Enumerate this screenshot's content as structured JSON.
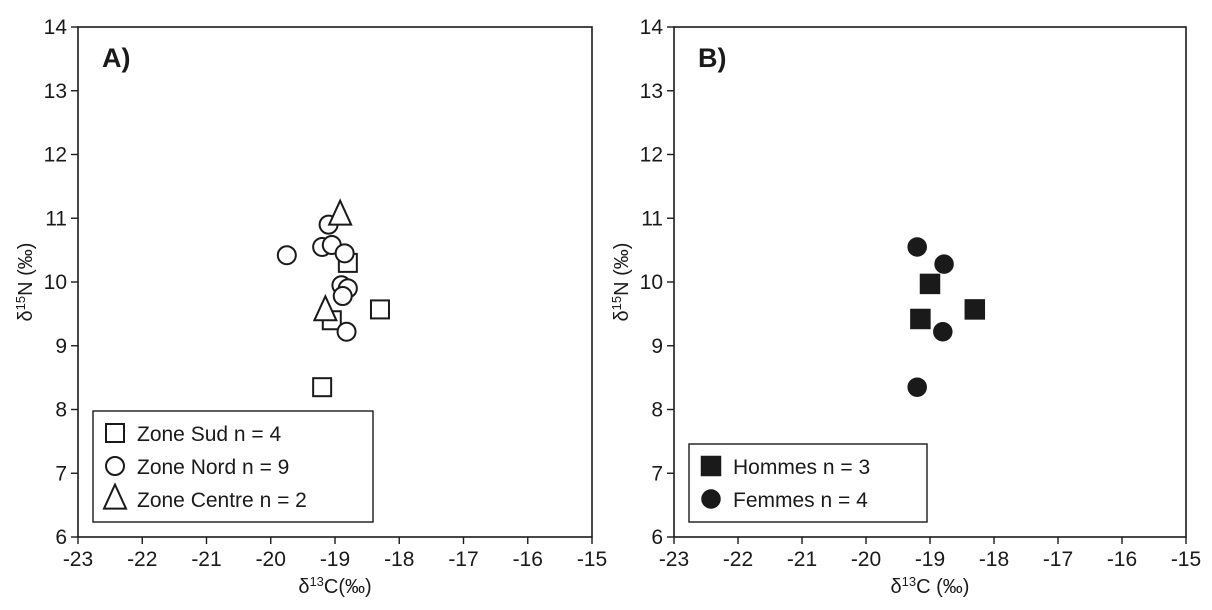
{
  "chart_data": [
    {
      "type": "scatter",
      "panel_label": "A)",
      "xlabel": {
        "delta": "δ",
        "sup": "13",
        "rest": "C(‰)"
      },
      "ylabel": {
        "delta": "δ",
        "sup": "15",
        "rest": "N (‰)"
      },
      "xlim": [
        -23,
        -15
      ],
      "ylim": [
        6,
        14
      ],
      "xticks": [
        "-23",
        "-22",
        "-21",
        "-20",
        "-19",
        "-18",
        "-17",
        "-16",
        "-15"
      ],
      "yticks": [
        "6",
        "7",
        "8",
        "9",
        "10",
        "11",
        "12",
        "13",
        "14"
      ],
      "grid": false,
      "legend_position": "bottom-left",
      "series": [
        {
          "name": "Zone Sud n = 4",
          "marker": "square",
          "filled": false,
          "points": [
            {
              "x": -19.2,
              "y": 8.35
            },
            {
              "x": -19.05,
              "y": 9.4
            },
            {
              "x": -18.8,
              "y": 10.3
            },
            {
              "x": -18.3,
              "y": 9.57
            }
          ]
        },
        {
          "name": "Zone Nord n = 9",
          "marker": "circle",
          "filled": false,
          "points": [
            {
              "x": -19.75,
              "y": 10.42
            },
            {
              "x": -19.2,
              "y": 10.55
            },
            {
              "x": -19.1,
              "y": 10.9
            },
            {
              "x": -19.05,
              "y": 10.58
            },
            {
              "x": -18.85,
              "y": 10.45
            },
            {
              "x": -18.9,
              "y": 9.95
            },
            {
              "x": -18.8,
              "y": 9.9
            },
            {
              "x": -18.88,
              "y": 9.78
            },
            {
              "x": -18.82,
              "y": 9.22
            }
          ]
        },
        {
          "name": "Zone Centre n = 2",
          "marker": "triangle",
          "filled": false,
          "points": [
            {
              "x": -18.92,
              "y": 11.05
            },
            {
              "x": -19.15,
              "y": 9.55
            }
          ]
        }
      ]
    },
    {
      "type": "scatter",
      "panel_label": "B)",
      "xlabel": {
        "delta": "δ",
        "sup": "13",
        "rest": "C (‰)"
      },
      "ylabel": {
        "delta": "δ",
        "sup": "15",
        "rest": "N (‰)"
      },
      "xlim": [
        -23,
        -15
      ],
      "ylim": [
        6,
        14
      ],
      "xticks": [
        "-23",
        "-22",
        "-21",
        "-20",
        "-19",
        "-18",
        "-17",
        "-16",
        "-15"
      ],
      "yticks": [
        "6",
        "7",
        "8",
        "9",
        "10",
        "11",
        "12",
        "13",
        "14"
      ],
      "grid": false,
      "legend_position": "bottom-left",
      "series": [
        {
          "name": "Hommes n = 3",
          "marker": "square",
          "filled": true,
          "points": [
            {
              "x": -19.0,
              "y": 9.97
            },
            {
              "x": -19.15,
              "y": 9.42
            },
            {
              "x": -18.3,
              "y": 9.57
            }
          ]
        },
        {
          "name": "Femmes n = 4",
          "marker": "circle",
          "filled": true,
          "points": [
            {
              "x": -19.2,
              "y": 10.55
            },
            {
              "x": -18.78,
              "y": 10.28
            },
            {
              "x": -18.8,
              "y": 9.22
            },
            {
              "x": -19.2,
              "y": 8.35
            }
          ]
        }
      ]
    }
  ]
}
